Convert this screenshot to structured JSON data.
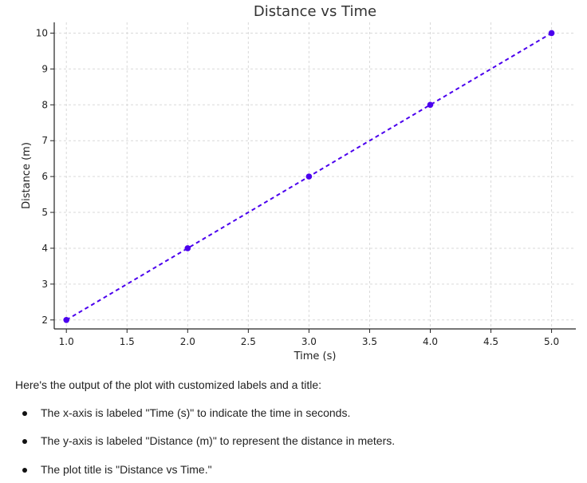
{
  "chart_data": {
    "type": "line",
    "title": "Distance vs Time",
    "xlabel": "Time (s)",
    "ylabel": "Distance (m)",
    "x": [
      1,
      2,
      3,
      4,
      5
    ],
    "series": [
      {
        "values": [
          2,
          4,
          6,
          8,
          10
        ],
        "color": "#4b00ee",
        "line_style": "dashed",
        "marker": "circle"
      }
    ],
    "xlim": [
      0.9,
      5.2
    ],
    "ylim": [
      1.75,
      10.3
    ],
    "x_ticks": [
      1.0,
      1.5,
      2.0,
      2.5,
      3.0,
      3.5,
      4.0,
      4.5,
      5.0
    ],
    "x_tick_labels": [
      "1.0",
      "1.5",
      "2.0",
      "2.5",
      "3.0",
      "3.5",
      "4.0",
      "4.5",
      "5.0"
    ],
    "y_ticks": [
      2,
      3,
      4,
      5,
      6,
      7,
      8,
      9,
      10
    ],
    "y_tick_labels": [
      "2",
      "3",
      "4",
      "5",
      "6",
      "7",
      "8",
      "9",
      "10"
    ],
    "grid": true
  },
  "response": {
    "intro": "Here's the output of the plot with customized labels and a title:",
    "bullets": [
      "The x-axis is labeled \"Time (s)\" to indicate the time in seconds.",
      "The y-axis is labeled \"Distance (m)\" to represent the distance in meters.",
      "The plot title is \"Distance vs Time.\""
    ]
  }
}
